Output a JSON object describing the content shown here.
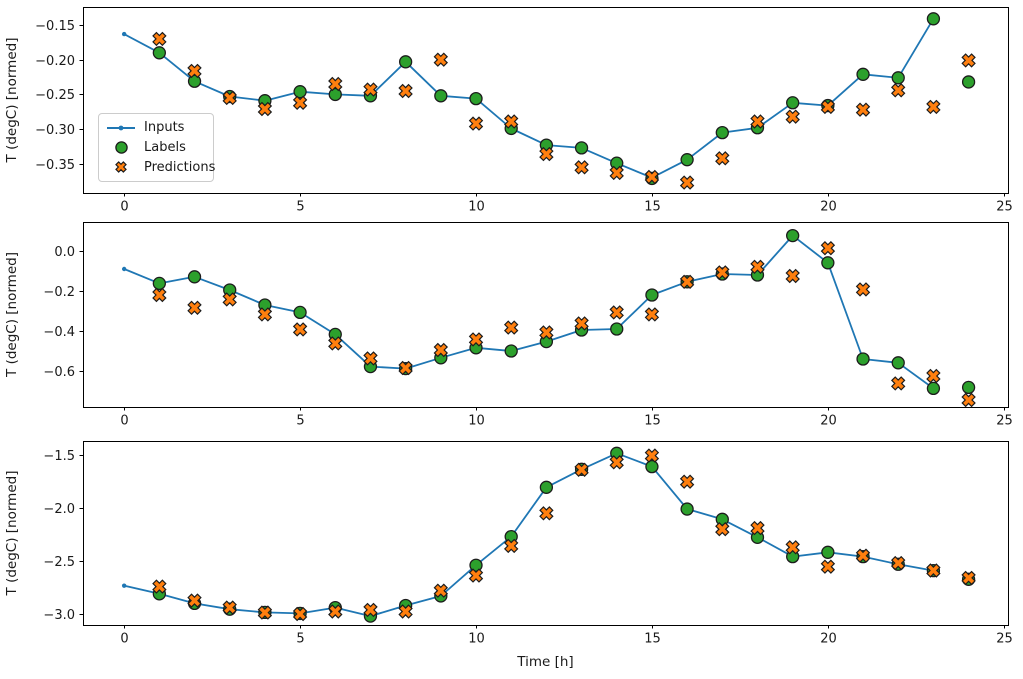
{
  "figure": {
    "background": "#ffffff"
  },
  "colors": {
    "inputs": "#1f77b4",
    "labels": "#2ca02c",
    "predictions": "#ff7f0e",
    "marker_edge": "#1c1c1c",
    "axis": "#000000",
    "text": "#1a1a1a"
  },
  "legend": {
    "items": [
      {
        "id": "inputs",
        "label": "Inputs",
        "marker": "line-with-dot"
      },
      {
        "id": "labels",
        "label": "Labels",
        "marker": "circle"
      },
      {
        "id": "predictions",
        "label": "Predictions",
        "marker": "x-cross"
      }
    ]
  },
  "chart_data": [
    {
      "type": "line",
      "ylabel": "T (degC) [normed]",
      "xlabel": "",
      "xlim": [
        -1.17,
        25.12
      ],
      "ylim": [
        -0.392,
        -0.124
      ],
      "xticks": {
        "values": [
          0,
          5,
          10,
          15,
          20,
          25
        ],
        "labels": [
          "0",
          "5",
          "10",
          "15",
          "20",
          "25"
        ]
      },
      "yticks": {
        "values": [
          -0.15,
          -0.2,
          -0.25,
          -0.3,
          -0.35
        ],
        "labels": [
          "−0.15",
          "−0.20",
          "−0.25",
          "−0.30",
          "−0.35"
        ]
      },
      "grid": false,
      "legend_position": "upper-left-inside",
      "series": {
        "inputs": {
          "name": "Inputs",
          "x": [
            0,
            1,
            2,
            3,
            4,
            5,
            6,
            7,
            8,
            9,
            10,
            11,
            12,
            13,
            14,
            15,
            16,
            17,
            18,
            19,
            20,
            21,
            22,
            23
          ],
          "y": [
            -0.163,
            -0.19,
            -0.231,
            -0.253,
            -0.259,
            -0.246,
            -0.25,
            -0.252,
            -0.203,
            -0.252,
            -0.256,
            -0.299,
            -0.323,
            -0.327,
            -0.349,
            -0.37,
            -0.344,
            -0.305,
            -0.298,
            -0.262,
            -0.266,
            -0.221,
            -0.226,
            -0.141
          ]
        },
        "labels": {
          "name": "Labels",
          "x": [
            1,
            2,
            3,
            4,
            5,
            6,
            7,
            8,
            9,
            10,
            11,
            12,
            13,
            14,
            15,
            16,
            17,
            18,
            19,
            20,
            21,
            22,
            23,
            24
          ],
          "y": [
            -0.19,
            -0.231,
            -0.253,
            -0.259,
            -0.246,
            -0.25,
            -0.252,
            -0.203,
            -0.252,
            -0.256,
            -0.299,
            -0.323,
            -0.327,
            -0.349,
            -0.371,
            -0.344,
            -0.305,
            -0.298,
            -0.262,
            -0.266,
            -0.221,
            -0.226,
            -0.141,
            -0.232
          ]
        },
        "predictions": {
          "name": "Predictions",
          "x": [
            1,
            2,
            3,
            4,
            5,
            6,
            7,
            8,
            9,
            10,
            11,
            12,
            13,
            14,
            15,
            16,
            17,
            18,
            19,
            20,
            21,
            22,
            23,
            24
          ],
          "y": [
            -0.17,
            -0.216,
            -0.255,
            -0.271,
            -0.262,
            -0.235,
            -0.243,
            -0.245,
            -0.2,
            -0.292,
            -0.289,
            -0.336,
            -0.355,
            -0.363,
            -0.369,
            -0.377,
            -0.342,
            -0.289,
            -0.282,
            -0.268,
            -0.272,
            -0.244,
            -0.268,
            -0.201
          ]
        }
      }
    },
    {
      "type": "line",
      "ylabel": "T (degC) [normed]",
      "xlabel": "",
      "xlim": [
        -1.17,
        25.12
      ],
      "ylim": [
        -0.78,
        0.145
      ],
      "xticks": {
        "values": [
          0,
          5,
          10,
          15,
          20,
          25
        ],
        "labels": [
          "0",
          "5",
          "10",
          "15",
          "20",
          "25"
        ]
      },
      "yticks": {
        "values": [
          0.0,
          -0.2,
          -0.4,
          -0.6
        ],
        "labels": [
          "0.0",
          "−0.2",
          "−0.4",
          "−0.6"
        ]
      },
      "grid": false,
      "series": {
        "inputs": {
          "name": "Inputs",
          "x": [
            0,
            1,
            2,
            3,
            4,
            5,
            6,
            7,
            8,
            9,
            10,
            11,
            12,
            13,
            14,
            15,
            16,
            17,
            18,
            19,
            20,
            21,
            22,
            23
          ],
          "y": [
            -0.09,
            -0.162,
            -0.129,
            -0.195,
            -0.27,
            -0.307,
            -0.417,
            -0.578,
            -0.588,
            -0.534,
            -0.484,
            -0.5,
            -0.453,
            -0.395,
            -0.39,
            -0.22,
            -0.154,
            -0.115,
            -0.12,
            0.077,
            -0.059,
            -0.54,
            -0.559,
            -0.687
          ]
        },
        "labels": {
          "name": "Labels",
          "x": [
            1,
            2,
            3,
            4,
            5,
            6,
            7,
            8,
            9,
            10,
            11,
            12,
            13,
            14,
            15,
            16,
            17,
            18,
            19,
            20,
            21,
            22,
            23,
            24
          ],
          "y": [
            -0.162,
            -0.129,
            -0.195,
            -0.27,
            -0.307,
            -0.417,
            -0.578,
            -0.588,
            -0.534,
            -0.484,
            -0.5,
            -0.453,
            -0.395,
            -0.39,
            -0.22,
            -0.154,
            -0.115,
            -0.12,
            0.077,
            -0.059,
            -0.54,
            -0.559,
            -0.687,
            -0.682
          ]
        },
        "predictions": {
          "name": "Predictions",
          "x": [
            1,
            2,
            3,
            4,
            5,
            6,
            7,
            8,
            9,
            10,
            11,
            12,
            13,
            14,
            15,
            16,
            17,
            18,
            19,
            20,
            21,
            22,
            23,
            24
          ],
          "y": [
            -0.22,
            -0.284,
            -0.242,
            -0.317,
            -0.392,
            -0.462,
            -0.537,
            -0.585,
            -0.495,
            -0.442,
            -0.383,
            -0.407,
            -0.362,
            -0.307,
            -0.317,
            -0.154,
            -0.107,
            -0.079,
            -0.125,
            0.014,
            -0.192,
            -0.662,
            -0.625,
            -0.745
          ]
        }
      }
    },
    {
      "type": "line",
      "ylabel": "T (degC) [normed]",
      "xlabel": "Time [h]",
      "xlim": [
        -1.17,
        25.12
      ],
      "ylim": [
        -3.104,
        -1.368
      ],
      "xticks": {
        "values": [
          0,
          5,
          10,
          15,
          20,
          25
        ],
        "labels": [
          "0",
          "5",
          "10",
          "15",
          "20",
          "25"
        ]
      },
      "yticks": {
        "values": [
          -1.5,
          -2.0,
          -2.5,
          -3.0
        ],
        "labels": [
          "−1.5",
          "−2.0",
          "−2.5",
          "−3.0"
        ]
      },
      "grid": false,
      "series": {
        "inputs": {
          "name": "Inputs",
          "x": [
            0,
            1,
            2,
            3,
            4,
            5,
            6,
            7,
            8,
            9,
            10,
            11,
            12,
            13,
            14,
            15,
            16,
            17,
            18,
            19,
            20,
            21,
            22,
            23
          ],
          "y": [
            -2.733,
            -2.81,
            -2.9,
            -2.955,
            -2.985,
            -2.995,
            -2.94,
            -3.02,
            -2.92,
            -2.83,
            -2.54,
            -2.27,
            -1.805,
            -1.635,
            -1.484,
            -1.61,
            -2.01,
            -2.107,
            -2.277,
            -2.459,
            -2.418,
            -2.459,
            -2.531,
            -2.591
          ]
        },
        "labels": {
          "name": "Labels",
          "x": [
            1,
            2,
            3,
            4,
            5,
            6,
            7,
            8,
            9,
            10,
            11,
            12,
            13,
            14,
            15,
            16,
            17,
            18,
            19,
            20,
            21,
            22,
            23,
            24
          ],
          "y": [
            -2.81,
            -2.9,
            -2.955,
            -2.985,
            -2.995,
            -2.94,
            -3.02,
            -2.92,
            -2.83,
            -2.54,
            -2.27,
            -1.805,
            -1.635,
            -1.484,
            -1.61,
            -2.01,
            -2.107,
            -2.277,
            -2.459,
            -2.418,
            -2.459,
            -2.531,
            -2.591,
            -2.673
          ]
        },
        "predictions": {
          "name": "Predictions",
          "x": [
            1,
            2,
            3,
            4,
            5,
            6,
            7,
            8,
            9,
            10,
            11,
            12,
            13,
            14,
            15,
            16,
            17,
            18,
            19,
            20,
            21,
            22,
            23,
            24
          ],
          "y": [
            -2.742,
            -2.874,
            -2.94,
            -2.987,
            -3.0,
            -2.977,
            -2.962,
            -2.977,
            -2.78,
            -2.638,
            -2.358,
            -2.05,
            -1.64,
            -1.569,
            -1.506,
            -1.752,
            -2.2,
            -2.19,
            -2.371,
            -2.554,
            -2.45,
            -2.52,
            -2.59,
            -2.66
          ]
        }
      }
    }
  ]
}
